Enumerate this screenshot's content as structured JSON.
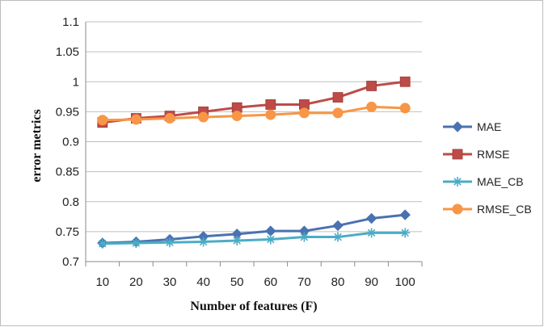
{
  "chart_data": {
    "type": "line",
    "title": "",
    "xlabel": "Number of features (F)",
    "ylabel": "error metrics",
    "x": [
      10,
      20,
      30,
      40,
      50,
      60,
      70,
      80,
      90,
      100
    ],
    "x_tick_labels": [
      "10",
      "20",
      "30",
      "40",
      "50",
      "60",
      "70",
      "80",
      "90",
      "100"
    ],
    "y_ticks": [
      0.7,
      0.75,
      0.8,
      0.85,
      0.9,
      0.95,
      1,
      1.05,
      1.1
    ],
    "y_tick_labels": [
      "0.7",
      "0.75",
      "0.8",
      "0.85",
      "0.9",
      "0.95",
      "1",
      "1.05",
      "1.1"
    ],
    "ylim": [
      0.7,
      1.1
    ],
    "grid": "horizontal",
    "legend_position": "right",
    "series": [
      {
        "name": "MAE",
        "color": "#4a72b0",
        "marker": "diamond",
        "values": [
          0.731,
          0.733,
          0.737,
          0.742,
          0.746,
          0.751,
          0.751,
          0.76,
          0.772,
          0.778
        ]
      },
      {
        "name": "RMSE",
        "color": "#be4b48",
        "marker": "square",
        "values": [
          0.932,
          0.939,
          0.943,
          0.95,
          0.957,
          0.962,
          0.962,
          0.974,
          0.993,
          1.0
        ]
      },
      {
        "name": "MAE_CB",
        "color": "#4bacc6",
        "marker": "asterisk",
        "values": [
          0.73,
          0.731,
          0.732,
          0.733,
          0.735,
          0.737,
          0.741,
          0.741,
          0.748,
          0.748
        ]
      },
      {
        "name": "RMSE_CB",
        "color": "#f79646",
        "marker": "circle",
        "values": [
          0.936,
          0.937,
          0.939,
          0.941,
          0.943,
          0.945,
          0.948,
          0.948,
          0.958,
          0.956
        ]
      }
    ]
  }
}
